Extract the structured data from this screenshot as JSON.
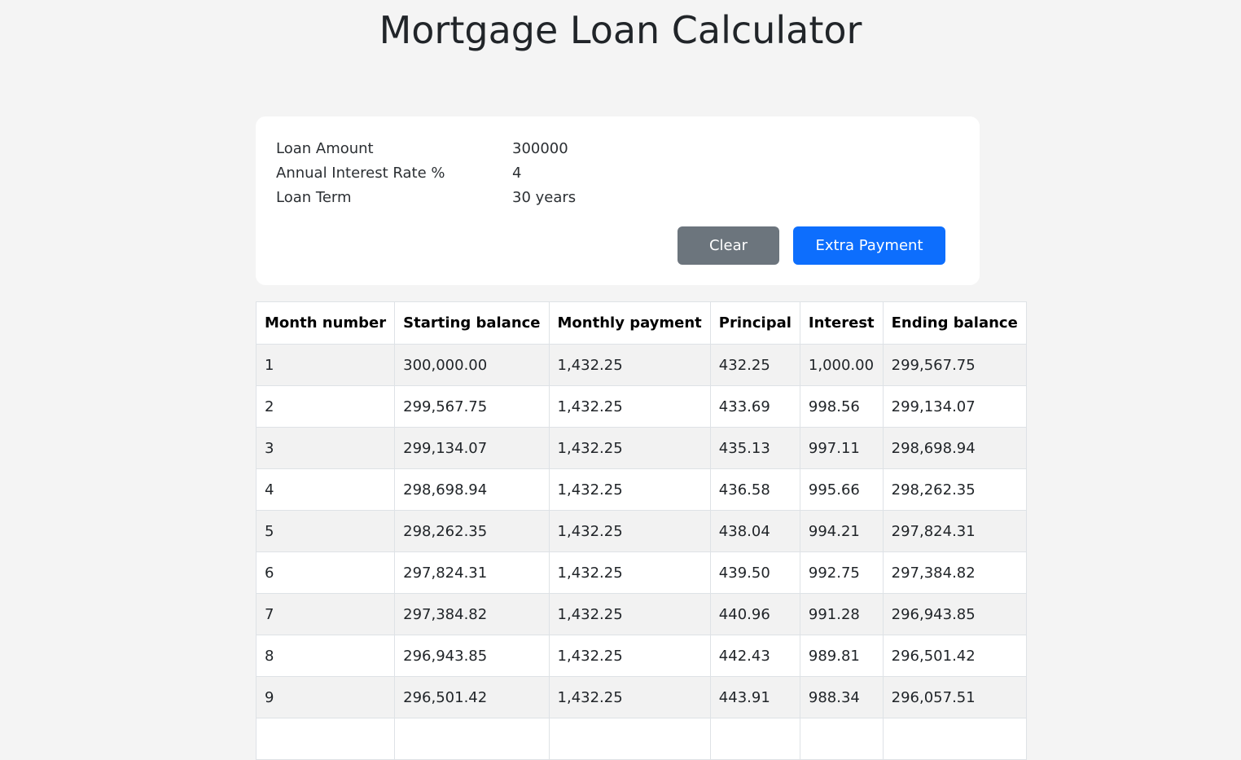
{
  "page": {
    "title": "Mortgage Loan Calculator"
  },
  "inputs": [
    {
      "label": "Loan Amount",
      "value": "300000"
    },
    {
      "label": "Annual Interest Rate %",
      "value": "4"
    },
    {
      "label": "Loan Term",
      "value": "30 years"
    }
  ],
  "buttons": {
    "clear_label": "Clear",
    "extra_payment_label": "Extra Payment"
  },
  "colors": {
    "clear_button": "#6c757d",
    "extra_payment_button": "#0d6efd",
    "background": "#f4f4f4"
  },
  "table": {
    "headers": [
      "Month number",
      "Starting balance",
      "Monthly payment",
      "Principal",
      "Interest",
      "Ending balance"
    ],
    "rows": [
      [
        "1",
        "300,000.00",
        "1,432.25",
        "432.25",
        "1,000.00",
        "299,567.75"
      ],
      [
        "2",
        "299,567.75",
        "1,432.25",
        "433.69",
        "998.56",
        "299,134.07"
      ],
      [
        "3",
        "299,134.07",
        "1,432.25",
        "435.13",
        "997.11",
        "298,698.94"
      ],
      [
        "4",
        "298,698.94",
        "1,432.25",
        "436.58",
        "995.66",
        "298,262.35"
      ],
      [
        "5",
        "298,262.35",
        "1,432.25",
        "438.04",
        "994.21",
        "297,824.31"
      ],
      [
        "6",
        "297,824.31",
        "1,432.25",
        "439.50",
        "992.75",
        "297,384.82"
      ],
      [
        "7",
        "297,384.82",
        "1,432.25",
        "440.96",
        "991.28",
        "296,943.85"
      ],
      [
        "8",
        "296,943.85",
        "1,432.25",
        "442.43",
        "989.81",
        "296,501.42"
      ],
      [
        "9",
        "296,501.42",
        "1,432.25",
        "443.91",
        "988.34",
        "296,057.51"
      ]
    ]
  }
}
